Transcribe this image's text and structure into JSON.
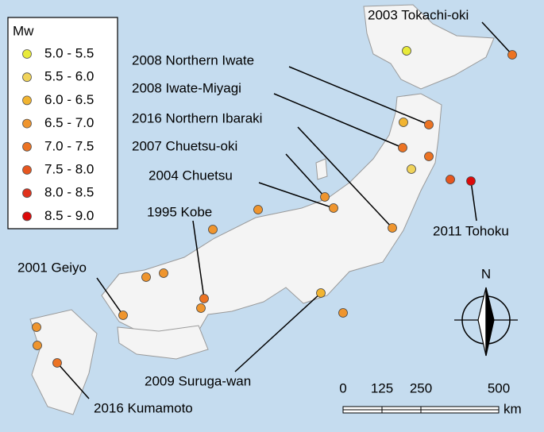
{
  "legend": {
    "title": "Mw",
    "items": [
      {
        "label": "5.0 - 5.5",
        "color": "#e8ea3a"
      },
      {
        "label": "5.5 - 6.0",
        "color": "#f0d35a"
      },
      {
        "label": "6.0 - 6.5",
        "color": "#f1b431"
      },
      {
        "label": "6.5 - 7.0",
        "color": "#ef952e"
      },
      {
        "label": "7.0 - 7.5",
        "color": "#ec7323"
      },
      {
        "label": "7.5 - 8.0",
        "color": "#e6561f"
      },
      {
        "label": "8.0 - 8.5",
        "color": "#e0321c"
      },
      {
        "label": "8.5 - 9.0",
        "color": "#dc0a0a"
      }
    ]
  },
  "events": [
    "2003 Tokachi-oki",
    "2008 Northern Iwate",
    "2008 Iwate-Miyagi",
    "2016 Northern Ibaraki",
    "2007 Chuetsu-oki",
    "2004 Chuetsu",
    "1995 Kobe",
    "2001 Geiyo",
    "2016 Kumamoto",
    "2011 Tohoku",
    "2009 Suruga-wan"
  ],
  "north_arrow": "N",
  "scale_bar": {
    "ticks": [
      0,
      125,
      250,
      500
    ],
    "unit": "km"
  }
}
